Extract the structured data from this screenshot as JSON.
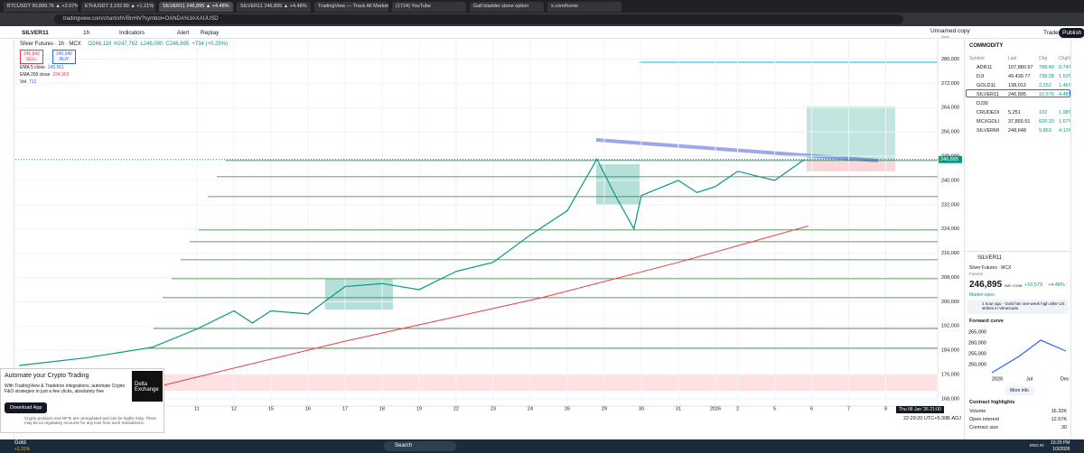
{
  "browser": {
    "tabs": [
      "BTCUSDT 90,899.76 ▲ +2.07%",
      "ETHUSDT 3,192.89 ▲ +1.21%",
      "SILVER11 246,895 ▲ +4.48%",
      "SILVER11 246,895 ▲ +4.48%",
      "TradingView — Track All Markets",
      "(1724) YouTube",
      "Gall bladder stone option",
      "x.com/home"
    ],
    "url": "tradingview.com/chart/xhVBnHh/?symbol=OANDA%3AXAUUSD"
  },
  "toolbar": {
    "symbol": "SILVER11",
    "interval": "1h",
    "indicators": "Indicators",
    "alert": "Alert",
    "replay": "Replay",
    "layout_name": "Unnamed copy",
    "save": "Save",
    "trade": "Trade",
    "publish": "Publish"
  },
  "chart_data": {
    "type": "line",
    "title": "Silver Futures · 1h · MCX",
    "ohlc": [
      "O246,110",
      "H247,762",
      "L246,090",
      "C246,895",
      "+734 (+0.29%)"
    ],
    "sell": {
      "price": "245,842",
      "label": "SELL"
    },
    "buy": {
      "price": "245,940",
      "label": "BUY"
    },
    "indicators": [
      {
        "name": "EMA 5 close",
        "value": "245,561"
      },
      {
        "name": "EMA 200 close",
        "value": "224,963"
      },
      {
        "name": "Vol",
        "value": "712"
      }
    ],
    "series": [
      {
        "name": "Close",
        "color": "#089981",
        "x": [
          -4.8,
          -3,
          -1.2,
          0,
          1,
          1.5,
          2,
          3,
          4,
          5,
          6,
          7,
          8,
          9,
          10,
          10.8,
          11.3,
          11.8,
          12,
          13,
          13.5,
          14,
          14.6,
          15.6,
          16.4
        ],
        "values": [
          179000,
          181500,
          185000,
          191000,
          197000,
          193000,
          197000,
          196000,
          205000,
          206000,
          204000,
          210000,
          213000,
          222000,
          230000,
          247000,
          235000,
          224000,
          235000,
          240000,
          236000,
          238000,
          243000,
          240000,
          246895
        ]
      },
      {
        "name": "EMA 200",
        "color": "#f23645",
        "x": [
          -1.2,
          4,
          9.3,
          13,
          16.5
        ],
        "values": [
          171600,
          187000,
          201300,
          213000,
          224963
        ]
      }
    ],
    "levels": [
      246571,
      241214,
      234667,
      223655,
      219786,
      213833,
      207583,
      201333,
      191214,
      184667
    ],
    "xlim": [
      -4.9,
      20
    ],
    "xticks": [
      {
        "value": 0,
        "label": "11"
      },
      {
        "value": 1,
        "label": "12"
      },
      {
        "value": 2,
        "label": "15"
      },
      {
        "value": 3,
        "label": "16"
      },
      {
        "value": 4,
        "label": "17"
      },
      {
        "value": 5,
        "label": "18"
      },
      {
        "value": 6,
        "label": "19"
      },
      {
        "value": 7,
        "label": "22"
      },
      {
        "value": 8,
        "label": "23"
      },
      {
        "value": 9,
        "label": "24"
      },
      {
        "value": 10,
        "label": "26"
      },
      {
        "value": 11,
        "label": "29"
      },
      {
        "value": 12,
        "label": "30"
      },
      {
        "value": 13,
        "label": "31"
      },
      {
        "value": 14,
        "label": "2026"
      },
      {
        "value": 14.6,
        "label": "2"
      },
      {
        "value": 15.6,
        "label": "5"
      },
      {
        "value": 16.6,
        "label": "6"
      },
      {
        "value": 17.6,
        "label": "7"
      },
      {
        "value": 18.6,
        "label": "8"
      }
    ],
    "ylim": [
      166200,
      285200
    ],
    "yticks": [
      {
        "value": 168000,
        "label": "168,000"
      },
      {
        "value": 176000,
        "label": "176,000"
      },
      {
        "value": 184000,
        "label": "184,000"
      },
      {
        "value": 192000,
        "label": "192,000"
      },
      {
        "value": 200000,
        "label": "200,000"
      },
      {
        "value": 208000,
        "label": "208,000"
      },
      {
        "value": 216000,
        "label": "216,000"
      },
      {
        "value": 224000,
        "label": "224,000"
      },
      {
        "value": 232000,
        "label": "232,000"
      },
      {
        "value": 240000,
        "label": "240,000"
      },
      {
        "value": 248000,
        "label": "248,000"
      },
      {
        "value": 256000,
        "label": "256,000"
      },
      {
        "value": 264000,
        "label": "264,000"
      },
      {
        "value": 272000,
        "label": "272,000"
      },
      {
        "value": 280000,
        "label": "280,000"
      }
    ],
    "last_price": {
      "value": 246895,
      "label": "246,895"
    },
    "cursor_time": "Thu 08 Jan '26 21:00",
    "clock": "22:29:20 UTC+5:30",
    "adj": "B-ADJ"
  },
  "ad": {
    "title": "Automate your Crypto Trading",
    "body": "With TradingView & Tradetron integrations, automate Crypto F&O strategies in just a few clicks, absolutely free",
    "button": "Download App",
    "brand": "Delta Exchange",
    "disclaimer": "Crypto products and NFTs are unregulated and can be highly risky. There may be no regulatory recourse for any loss from such transactions."
  },
  "watchlist": {
    "title": "COMMODITY",
    "columns": [
      "Symbol",
      "Last",
      "Chg",
      "Chg%"
    ],
    "rows": [
      [
        "ADR11",
        "107,880.97",
        "788.49",
        "0.74%"
      ],
      [
        "DJI",
        "49,430.77",
        "738.28",
        "1.53%"
      ],
      [
        "GOLD11",
        "138,012",
        "2,252",
        "1.46%"
      ],
      [
        "SILVER11",
        "246,895",
        "10,579",
        "4.48%"
      ],
      [
        "DJ30",
        "",
        "",
        ""
      ],
      [
        "CRUDEOI",
        "5,251",
        "102",
        "1.98%"
      ],
      [
        "MCXGOLI",
        "37,865.51",
        "620.33",
        "1.67%"
      ],
      [
        "SILVERMI",
        "248,648",
        "9,863",
        "4.13%"
      ]
    ]
  },
  "details": {
    "symbol": "SILVER11",
    "name": "Silver Futures · MCX",
    "type": "Futures",
    "price": "246,895",
    "unit": "INR / KGM",
    "change": "+10,579",
    "change_pct": "+4.48%",
    "status": "Market open",
    "news": "1 hour ago · Gold hits one-week high after US strikes in Venezuela",
    "curve_title": "Forward curve",
    "curve_ticks": [
      "265,000",
      "260,000",
      "255,000",
      "250,000"
    ],
    "curve_x": [
      "2026",
      "Jul",
      "Dec"
    ],
    "more": "More info",
    "highlights": "Contract highlights",
    "rows": [
      [
        "Volume",
        "16.32K"
      ],
      [
        "Open interest",
        "12.57K"
      ],
      [
        "Contract size",
        "30"
      ]
    ]
  },
  "taskbar": {
    "weather": "Gold",
    "weather_sub": "+1.31%",
    "search": "Search",
    "lang": "ENG IN",
    "time": "10:29 PM",
    "date": "1/3/2026"
  }
}
